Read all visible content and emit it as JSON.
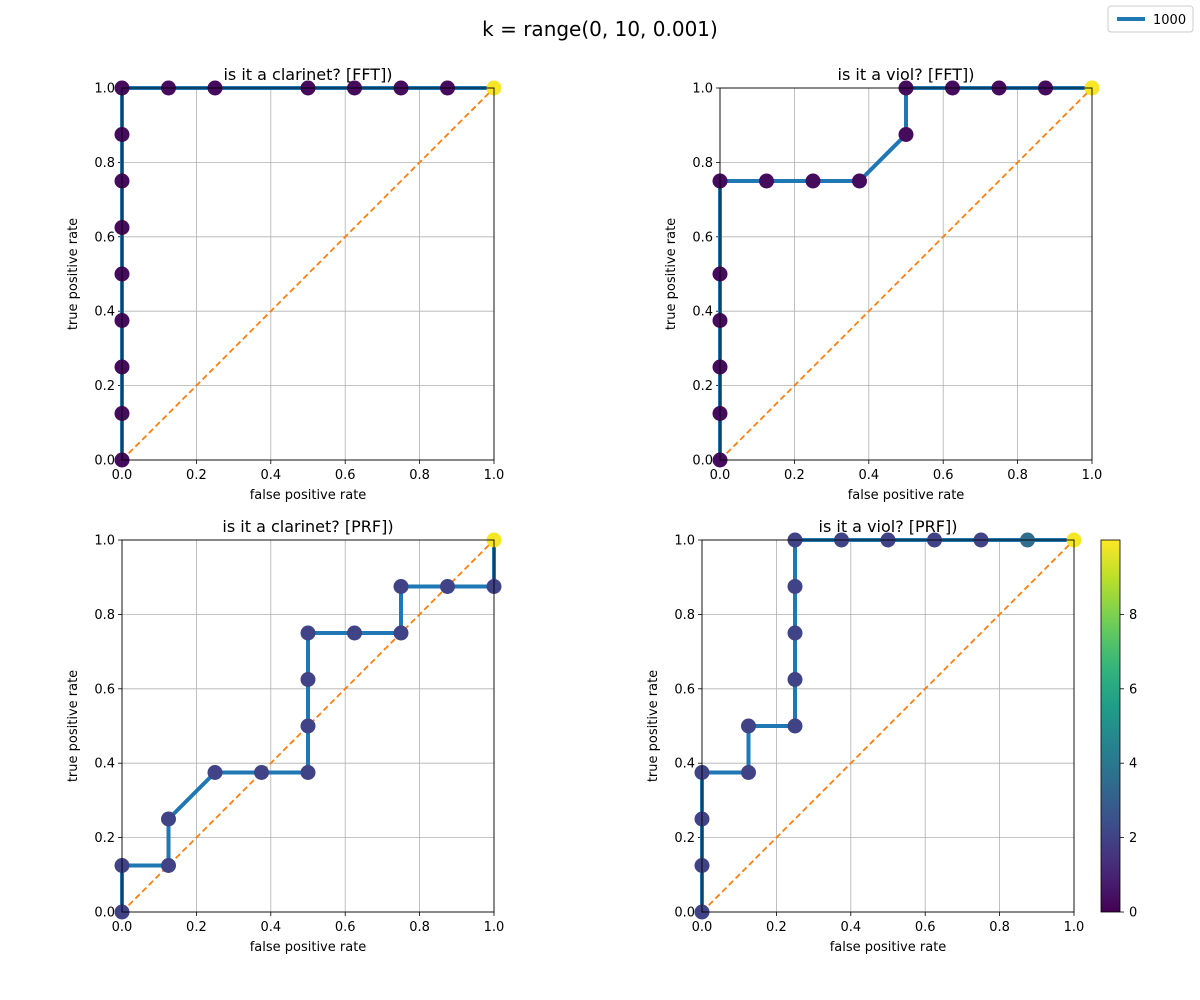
{
  "suptitle": "k = range(0, 10, 0.001)",
  "legend": {
    "label": "1000",
    "color": "#1f77b4"
  },
  "colorbar": {
    "ticks": [
      "0",
      "2",
      "4",
      "6",
      "8"
    ],
    "tick_values": [
      0,
      2,
      4,
      6,
      8
    ],
    "range": [
      0,
      10
    ],
    "colormap": "viridis"
  },
  "colors": {
    "curve": "#1f77b4",
    "diagonal": "#ff7f0e",
    "grid": "#b0b0b0"
  },
  "axis_ticks": [
    "0.0",
    "0.2",
    "0.4",
    "0.6",
    "0.8",
    "1.0"
  ],
  "chart_data": [
    {
      "type": "line",
      "title": "is it a clarinet? [FFT])",
      "xlabel": "false positive rate",
      "ylabel": "true positive rate",
      "xlim": [
        0,
        1
      ],
      "ylim": [
        0,
        1
      ],
      "grid": true,
      "series": [
        {
          "name": "1000",
          "x": [
            0,
            0,
            0,
            0,
            0,
            0,
            0,
            0,
            0,
            0.125,
            0.25,
            0.5,
            0.625,
            0.75,
            0.875,
            1
          ],
          "y": [
            0,
            0.125,
            0.25,
            0.375,
            0.5,
            0.625,
            0.75,
            0.875,
            1,
            1,
            1,
            1,
            1,
            1,
            1,
            1
          ]
        }
      ],
      "marker_k": [
        0.3,
        0.3,
        0.3,
        0.3,
        0.3,
        0.3,
        0.3,
        0.3,
        0.3,
        0.3,
        0.3,
        0.3,
        0.3,
        0.3,
        0.3,
        9.9
      ]
    },
    {
      "type": "line",
      "title": "is it a viol? [FFT])",
      "xlabel": "false positive rate",
      "ylabel": "true positive rate",
      "xlim": [
        0,
        1
      ],
      "ylim": [
        0,
        1
      ],
      "grid": true,
      "series": [
        {
          "name": "1000",
          "x": [
            0,
            0,
            0,
            0,
            0,
            0,
            0.125,
            0.25,
            0.375,
            0.5,
            0.5,
            0.625,
            0.75,
            0.875,
            1
          ],
          "y": [
            0,
            0.125,
            0.25,
            0.375,
            0.5,
            0.75,
            0.75,
            0.75,
            0.75,
            0.875,
            1,
            1,
            1,
            1,
            1
          ]
        }
      ],
      "marker_k": [
        0.3,
        0.3,
        0.3,
        0.3,
        0.3,
        0.3,
        0.3,
        0.3,
        0.3,
        0.3,
        0.3,
        0.3,
        0.3,
        0.3,
        9.9
      ]
    },
    {
      "type": "line",
      "title": "is it a clarinet? [PRF])",
      "xlabel": "false positive rate",
      "ylabel": "true positive rate",
      "xlim": [
        0,
        1
      ],
      "ylim": [
        0,
        1
      ],
      "grid": true,
      "series": [
        {
          "name": "1000",
          "x": [
            0,
            0,
            0.125,
            0.125,
            0.25,
            0.375,
            0.5,
            0.5,
            0.5,
            0.5,
            0.625,
            0.75,
            0.75,
            0.875,
            1,
            1
          ],
          "y": [
            0,
            0.125,
            0.125,
            0.25,
            0.375,
            0.375,
            0.375,
            0.5,
            0.625,
            0.75,
            0.75,
            0.75,
            0.875,
            0.875,
            0.875,
            1
          ]
        }
      ],
      "marker_k": [
        2,
        2,
        2,
        2,
        2,
        2,
        2,
        2,
        2,
        2,
        2,
        2,
        2,
        2,
        2,
        9.9
      ]
    },
    {
      "type": "line",
      "title": "is it a viol? [PRF])",
      "xlabel": "false positive rate",
      "ylabel": "true positive rate",
      "xlim": [
        0,
        1
      ],
      "ylim": [
        0,
        1
      ],
      "grid": true,
      "series": [
        {
          "name": "1000",
          "x": [
            0,
            0,
            0,
            0,
            0.125,
            0.125,
            0.25,
            0.25,
            0.25,
            0.25,
            0.25,
            0.375,
            0.5,
            0.625,
            0.75,
            0.875,
            1
          ],
          "y": [
            0,
            0.125,
            0.25,
            0.375,
            0.375,
            0.5,
            0.5,
            0.625,
            0.75,
            0.875,
            1,
            1,
            1,
            1,
            1,
            1,
            1
          ]
        }
      ],
      "marker_k": [
        2,
        2,
        2,
        2,
        2,
        2,
        2,
        2,
        2,
        2,
        2,
        2,
        2,
        2,
        2,
        3.5,
        9.9
      ]
    }
  ]
}
